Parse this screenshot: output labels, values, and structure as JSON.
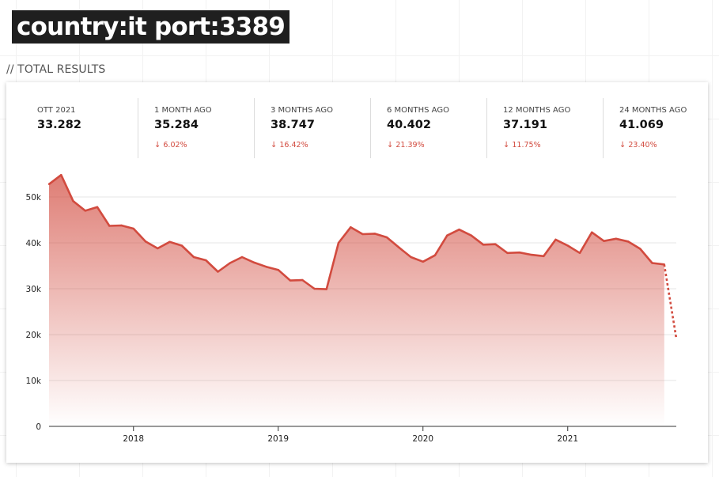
{
  "query": "country:it port:3389",
  "section_title": "// TOTAL RESULTS",
  "colors": {
    "accent": "#d24b3f",
    "badge_bg": "#1f1f1f"
  },
  "stats": [
    {
      "label": "OTT 2021",
      "value": "33.282",
      "change": ""
    },
    {
      "label": "1 MONTH AGO",
      "value": "35.284",
      "change": "6.02%"
    },
    {
      "label": "3 MONTHS AGO",
      "value": "38.747",
      "change": "16.42%"
    },
    {
      "label": "6 MONTHS AGO",
      "value": "40.402",
      "change": "21.39%"
    },
    {
      "label": "12 MONTHS AGO",
      "value": "37.191",
      "change": "11.75%"
    },
    {
      "label": "24 MONTHS AGO",
      "value": "41.069",
      "change": "23.40%"
    }
  ],
  "change_icon": "arrow-down-icon",
  "chart_data": {
    "type": "area",
    "title": "",
    "xlabel": "",
    "ylabel": "",
    "ylim": [
      0,
      55000
    ],
    "y_ticks": [
      {
        "value": 0,
        "label": "0"
      },
      {
        "value": 10000,
        "label": "10k"
      },
      {
        "value": 20000,
        "label": "20k"
      },
      {
        "value": 30000,
        "label": "30k"
      },
      {
        "value": 40000,
        "label": "40k"
      },
      {
        "value": 50000,
        "label": "50k"
      }
    ],
    "xlim": [
      "2017-06",
      "2021-10"
    ],
    "x_ticks": [
      {
        "value": "2018-01",
        "label": "2018"
      },
      {
        "value": "2019-01",
        "label": "2019"
      },
      {
        "value": "2020-01",
        "label": "2020"
      },
      {
        "value": "2021-01",
        "label": "2021"
      }
    ],
    "grid": true,
    "series": [
      {
        "x": [
          "2017-06",
          "2017-07",
          "2017-08",
          "2017-09",
          "2017-10",
          "2017-11",
          "2017-12",
          "2018-01",
          "2018-02",
          "2018-03",
          "2018-04",
          "2018-05",
          "2018-06",
          "2018-07",
          "2018-08",
          "2018-09",
          "2018-10",
          "2018-11",
          "2018-12",
          "2019-01",
          "2019-02",
          "2019-03",
          "2019-04",
          "2019-05",
          "2019-06",
          "2019-07",
          "2019-08",
          "2019-09",
          "2019-10",
          "2019-11",
          "2019-12",
          "2020-01",
          "2020-02",
          "2020-03",
          "2020-04",
          "2020-05",
          "2020-06",
          "2020-07",
          "2020-08",
          "2020-09",
          "2020-10",
          "2020-11",
          "2020-12",
          "2021-01",
          "2021-02",
          "2021-03",
          "2021-04",
          "2021-05",
          "2021-06",
          "2021-07",
          "2021-08",
          "2021-09"
        ],
        "values": [
          52800,
          54800,
          49100,
          47000,
          47800,
          43700,
          43800,
          43100,
          40300,
          38800,
          40200,
          39400,
          36900,
          36200,
          33700,
          35600,
          36900,
          35700,
          34800,
          34100,
          31800,
          31900,
          30000,
          29900,
          40000,
          43400,
          41900,
          42000,
          41200,
          39000,
          36900,
          35900,
          37300,
          41600,
          42900,
          41600,
          39600,
          39700,
          37800,
          37900,
          37400,
          37100,
          40700,
          39400,
          37800,
          42300,
          40400,
          40900,
          40300,
          38700,
          35600,
          35300
        ]
      }
    ],
    "projection": {
      "x": [
        "2021-09",
        "2021-10"
      ],
      "values": [
        35300,
        19200
      ]
    }
  }
}
